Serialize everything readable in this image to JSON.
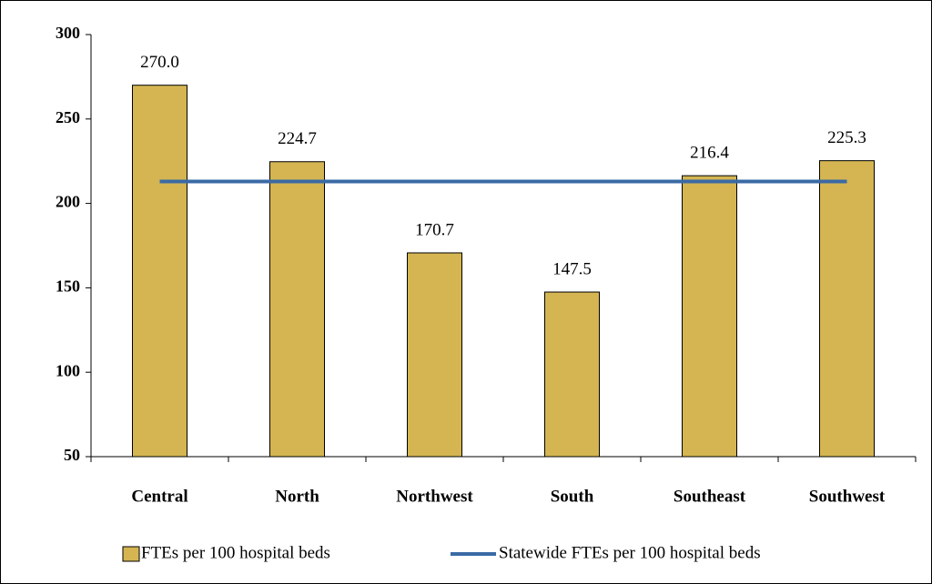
{
  "chart_data": {
    "type": "bar",
    "categories": [
      "Central",
      "North",
      "Northwest",
      "South",
      "Southeast",
      "Southwest"
    ],
    "series": [
      {
        "name": "FTEs per 100 hospital beds",
        "type": "bar",
        "color": "#d4b552",
        "values": [
          270.0,
          224.7,
          170.7,
          147.5,
          216.4,
          225.3
        ],
        "value_labels": [
          "270.0",
          "224.7",
          "170.7",
          "147.5",
          "216.4",
          "225.3"
        ]
      },
      {
        "name": "Statewide FTEs per 100 hospital beds",
        "type": "line",
        "color": "#3a6aa5",
        "values": [
          213,
          213,
          213,
          213,
          213,
          213
        ]
      }
    ],
    "ylim": [
      50,
      300
    ],
    "yticks": [
      50,
      100,
      150,
      200,
      250,
      300
    ],
    "grid": false,
    "legend": "bottom"
  }
}
